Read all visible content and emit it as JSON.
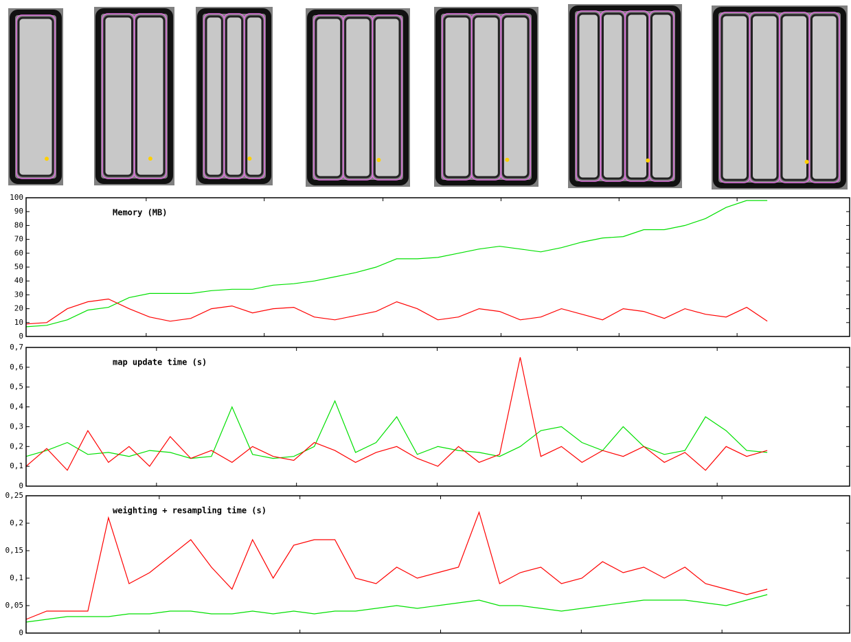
{
  "chart_data": [
    {
      "type": "line",
      "title": "Memory (MB)",
      "x": [
        0,
        30,
        60,
        90,
        120,
        150,
        180,
        210,
        240,
        270,
        300,
        330,
        360,
        390,
        420,
        450,
        480,
        510,
        540,
        570,
        600,
        630,
        660,
        690,
        720,
        750,
        780,
        810,
        840,
        870,
        900,
        930,
        960,
        990,
        1020,
        1050,
        1080
      ],
      "xlim": [
        0,
        1200
      ],
      "xticks": [
        175,
        347,
        520,
        692,
        864,
        1036
      ],
      "ylim": [
        0,
        100
      ],
      "yticks": [
        0,
        10,
        20,
        30,
        40,
        50,
        60,
        70,
        80,
        90,
        100
      ],
      "series": [
        {
          "color": "#00e000",
          "values": [
            7,
            8,
            12,
            19,
            21,
            28,
            31,
            31,
            31,
            33,
            34,
            34,
            37,
            38,
            40,
            43,
            46,
            50,
            56,
            56,
            57,
            60,
            63,
            65,
            63,
            61,
            64,
            68,
            71,
            72,
            77,
            77,
            80,
            85,
            93,
            98,
            98
          ]
        },
        {
          "color": "#ff0000",
          "values": [
            9,
            10,
            20,
            25,
            27,
            20,
            14,
            11,
            13,
            20,
            22,
            17,
            20,
            21,
            14,
            12,
            15,
            18,
            25,
            20,
            12,
            14,
            20,
            18,
            12,
            14,
            20,
            16,
            12,
            20,
            18,
            13,
            20,
            16,
            14,
            21,
            11
          ]
        }
      ]
    },
    {
      "type": "line",
      "title": "map update time (s)",
      "x": [
        0,
        30,
        60,
        90,
        120,
        150,
        180,
        210,
        240,
        270,
        300,
        330,
        360,
        390,
        420,
        450,
        480,
        510,
        540,
        570,
        600,
        630,
        660,
        690,
        720,
        750,
        780,
        810,
        840,
        870,
        900,
        930,
        960,
        990,
        1020,
        1050,
        1080
      ],
      "xlim": [
        0,
        1200
      ],
      "xticks": [
        190,
        394,
        599,
        803,
        1007
      ],
      "ylim": [
        0,
        0.7
      ],
      "yticks": [
        {
          "value": 0,
          "label": "0"
        },
        {
          "value": 0.1,
          "label": "0,1"
        },
        {
          "value": 0.2,
          "label": "0,2"
        },
        {
          "value": 0.3,
          "label": "0,3"
        },
        {
          "value": 0.4,
          "label": "0,4"
        },
        {
          "value": 0.5,
          "label": "0,5"
        },
        {
          "value": 0.6,
          "label": "0,6"
        },
        {
          "value": 0.7,
          "label": "0,7"
        }
      ],
      "series": [
        {
          "color": "#00e000",
          "values": [
            0.15,
            0.18,
            0.22,
            0.16,
            0.17,
            0.15,
            0.18,
            0.17,
            0.14,
            0.15,
            0.4,
            0.16,
            0.14,
            0.15,
            0.2,
            0.43,
            0.17,
            0.22,
            0.35,
            0.16,
            0.2,
            0.18,
            0.17,
            0.15,
            0.2,
            0.28,
            0.3,
            0.22,
            0.18,
            0.3,
            0.2,
            0.16,
            0.18,
            0.35,
            0.28,
            0.18,
            0.17
          ]
        },
        {
          "color": "#ff0000",
          "values": [
            0.1,
            0.19,
            0.08,
            0.28,
            0.12,
            0.2,
            0.1,
            0.25,
            0.14,
            0.18,
            0.12,
            0.2,
            0.15,
            0.13,
            0.22,
            0.18,
            0.12,
            0.17,
            0.2,
            0.14,
            0.1,
            0.2,
            0.12,
            0.16,
            0.65,
            0.15,
            0.2,
            0.12,
            0.18,
            0.15,
            0.2,
            0.12,
            0.17,
            0.08,
            0.2,
            0.15,
            0.18
          ]
        }
      ]
    },
    {
      "type": "line",
      "title": "weighting + resampling time (s)",
      "x": [
        0,
        30,
        60,
        90,
        120,
        150,
        180,
        210,
        240,
        270,
        300,
        330,
        360,
        390,
        420,
        450,
        480,
        510,
        540,
        570,
        600,
        630,
        660,
        690,
        720,
        750,
        780,
        810,
        840,
        870,
        900,
        930,
        960,
        990,
        1020,
        1050,
        1080
      ],
      "xlim": [
        0,
        1200
      ],
      "xticks": [
        194,
        399,
        604,
        809,
        1014
      ],
      "ylim": [
        0,
        0.25
      ],
      "yticks": [
        {
          "value": 0,
          "label": "0"
        },
        {
          "value": 0.05,
          "label": "0,05"
        },
        {
          "value": 0.1,
          "label": "0,1"
        },
        {
          "value": 0.15,
          "label": "0,15"
        },
        {
          "value": 0.2,
          "label": "0,2"
        },
        {
          "value": 0.25,
          "label": "0,25"
        }
      ],
      "series": [
        {
          "color": "#00e000",
          "values": [
            0.02,
            0.025,
            0.03,
            0.03,
            0.03,
            0.035,
            0.035,
            0.04,
            0.04,
            0.035,
            0.035,
            0.04,
            0.035,
            0.04,
            0.035,
            0.04,
            0.04,
            0.045,
            0.05,
            0.045,
            0.05,
            0.055,
            0.06,
            0.05,
            0.05,
            0.045,
            0.04,
            0.045,
            0.05,
            0.055,
            0.06,
            0.06,
            0.06,
            0.055,
            0.05,
            0.06,
            0.07
          ]
        },
        {
          "color": "#ff0000",
          "values": [
            0.025,
            0.04,
            0.04,
            0.04,
            0.21,
            0.09,
            0.11,
            0.14,
            0.17,
            0.12,
            0.08,
            0.17,
            0.1,
            0.16,
            0.17,
            0.17,
            0.1,
            0.09,
            0.12,
            0.1,
            0.11,
            0.12,
            0.22,
            0.09,
            0.11,
            0.12,
            0.09,
            0.1,
            0.13,
            0.11,
            0.12,
            0.1,
            0.12,
            0.09,
            0.08,
            0.07,
            0.08
          ]
        }
      ]
    }
  ]
}
